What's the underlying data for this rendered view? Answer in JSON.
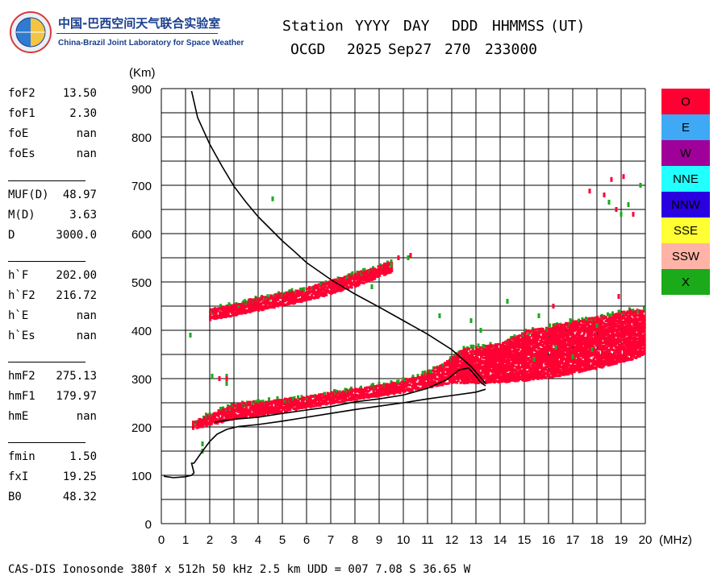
{
  "logo": {
    "cn_text": "中国-巴西空间天气联合实验室",
    "en_text": "China-Brazil Joint Laboratory for Space Weather"
  },
  "header": {
    "labels": [
      "Station",
      "YYYY",
      "DAY",
      "DDD",
      "HHMMSS",
      "(UT)"
    ],
    "values": [
      "OCGD",
      "2025",
      "Sep27",
      "270",
      "233000"
    ]
  },
  "parameters": [
    [
      {
        "name": "foF2",
        "value": "13.50"
      },
      {
        "name": "foF1",
        "value": "2.30"
      },
      {
        "name": "foE",
        "value": "nan"
      },
      {
        "name": "foEs",
        "value": "nan"
      }
    ],
    [
      {
        "name": "MUF(D)",
        "value": "48.97"
      },
      {
        "name": "M(D)",
        "value": "3.63"
      },
      {
        "name": "D",
        "value": "3000.0"
      }
    ],
    [
      {
        "name": "h`F",
        "value": "202.00"
      },
      {
        "name": "h`F2",
        "value": "216.72"
      },
      {
        "name": "h`E",
        "value": "nan"
      },
      {
        "name": "h`Es",
        "value": "nan"
      }
    ],
    [
      {
        "name": "hmF2",
        "value": "275.13"
      },
      {
        "name": "hmF1",
        "value": "179.97"
      },
      {
        "name": "hmE",
        "value": "nan"
      }
    ],
    [
      {
        "name": "fmin",
        "value": "1.50"
      },
      {
        "name": "fxI",
        "value": "19.25"
      },
      {
        "name": "B0",
        "value": "48.32"
      }
    ]
  ],
  "footer": "CAS-DIS Ionosonde 380f x 512h 50 kHz 2.5 km UDD = 007 7.08 S 36.65 W",
  "legend": [
    {
      "label": "O",
      "color": "#ff0033"
    },
    {
      "label": "E",
      "color": "#3fa9f5"
    },
    {
      "label": "W",
      "color": "#a0009a"
    },
    {
      "label": "NNE",
      "color": "#22ffff"
    },
    {
      "label": "NNW",
      "color": "#2a00e0"
    },
    {
      "label": "SSE",
      "color": "#ffff33"
    },
    {
      "label": "SSW",
      "color": "#ffb3a6"
    },
    {
      "label": "X",
      "color": "#1aaa1a"
    }
  ],
  "chart_data": {
    "type": "scatter",
    "xlabel": "(MHz)",
    "ylabel": "(Km)",
    "xlim": [
      0,
      20
    ],
    "ylim": [
      0,
      900
    ],
    "xticks": [
      0,
      1,
      2,
      3,
      4,
      5,
      6,
      7,
      8,
      9,
      10,
      11,
      12,
      13,
      14,
      15,
      16,
      17,
      18,
      19,
      20
    ],
    "yticks": [
      0,
      100,
      200,
      300,
      400,
      500,
      600,
      700,
      800,
      900
    ],
    "grid": true,
    "legend_position": "right",
    "traces": [
      {
        "name": "O",
        "color": "#ff0033",
        "bands": [
          {
            "lower": [
              [
                1.3,
                195
              ],
              [
                3,
                215
              ],
              [
                5,
                230
              ],
              [
                7,
                248
              ],
              [
                9,
                263
              ],
              [
                10.5,
                275
              ],
              [
                12,
                290
              ],
              [
                13.5,
                290
              ],
              [
                15,
                295
              ],
              [
                16.5,
                305
              ],
              [
                18,
                320
              ],
              [
                19.5,
                340
              ],
              [
                20,
                350
              ]
            ],
            "upper": [
              [
                1.3,
                210
              ],
              [
                3,
                245
              ],
              [
                5,
                255
              ],
              [
                7,
                268
              ],
              [
                9,
                285
              ],
              [
                10.5,
                300
              ],
              [
                11.5,
                325
              ],
              [
                12.5,
                360
              ],
              [
                14,
                370
              ],
              [
                15,
                395
              ],
              [
                16.5,
                410
              ],
              [
                18,
                425
              ],
              [
                19.5,
                440
              ],
              [
                20,
                440
              ]
            ]
          },
          {
            "lower": [
              [
                2.0,
                420
              ],
              [
                4,
                440
              ],
              [
                6,
                460
              ],
              [
                8,
                490
              ],
              [
                9.5,
                520
              ]
            ],
            "upper": [
              [
                2.0,
                440
              ],
              [
                4,
                465
              ],
              [
                6,
                485
              ],
              [
                8,
                515
              ],
              [
                9.5,
                540
              ]
            ]
          }
        ]
      },
      {
        "name": "X",
        "color": "#1aaa1a",
        "points": [
          [
            1.2,
            390
          ],
          [
            1.7,
            165
          ],
          [
            1.7,
            150
          ],
          [
            2.1,
            305
          ],
          [
            2.7,
            305
          ],
          [
            2.7,
            290
          ],
          [
            4.6,
            672
          ],
          [
            10.2,
            550
          ],
          [
            11.5,
            430
          ],
          [
            12.8,
            420
          ],
          [
            13.2,
            400
          ],
          [
            14.3,
            460
          ],
          [
            15.6,
            430
          ],
          [
            16.3,
            365
          ],
          [
            17.0,
            345
          ],
          [
            17.8,
            360
          ],
          [
            18.5,
            665
          ],
          [
            19.0,
            640
          ],
          [
            19.8,
            700
          ],
          [
            19.3,
            660
          ],
          [
            18.0,
            410
          ],
          [
            9.5,
            535
          ],
          [
            8.7,
            490
          ],
          [
            15.4,
            340
          ],
          [
            16.9,
            420
          ]
        ]
      },
      {
        "name": "O-isolated",
        "color": "#ff0033",
        "points": [
          [
            17.7,
            688
          ],
          [
            18.3,
            680
          ],
          [
            18.6,
            712
          ],
          [
            19.1,
            718
          ],
          [
            18.8,
            650
          ],
          [
            19.5,
            640
          ],
          [
            19.9,
            405
          ],
          [
            19.7,
            365
          ],
          [
            18.9,
            470
          ],
          [
            17.8,
            395
          ],
          [
            16.2,
            450
          ],
          [
            10.3,
            555
          ],
          [
            9.8,
            550
          ],
          [
            2.4,
            300
          ],
          [
            2.7,
            300
          ]
        ]
      }
    ],
    "curves": [
      {
        "name": "MUF curve",
        "color": "#000000",
        "points": [
          [
            1.25,
            895
          ],
          [
            1.5,
            840
          ],
          [
            2.0,
            785
          ],
          [
            2.5,
            740
          ],
          [
            3.0,
            698
          ],
          [
            3.5,
            665
          ],
          [
            4.0,
            635
          ],
          [
            4.5,
            610
          ],
          [
            5.0,
            585
          ],
          [
            5.5,
            563
          ],
          [
            6.0,
            540
          ],
          [
            7.0,
            505
          ],
          [
            8.0,
            475
          ],
          [
            9.0,
            448
          ],
          [
            10.0,
            420
          ],
          [
            11.0,
            392
          ],
          [
            12.0,
            360
          ],
          [
            12.8,
            325
          ],
          [
            13.4,
            290
          ]
        ]
      },
      {
        "name": "Trace profile",
        "color": "#000000",
        "points": [
          [
            0.1,
            98
          ],
          [
            0.5,
            95
          ],
          [
            1.0,
            97
          ],
          [
            1.25,
            100
          ],
          [
            1.35,
            105
          ],
          [
            1.25,
            125
          ],
          [
            1.35,
            125
          ],
          [
            1.7,
            150
          ],
          [
            2.0,
            170
          ],
          [
            2.3,
            185
          ],
          [
            2.7,
            195
          ],
          [
            3.2,
            201
          ],
          [
            4.0,
            205
          ],
          [
            5.0,
            212
          ],
          [
            6.0,
            220
          ],
          [
            7.0,
            228
          ],
          [
            8.0,
            236
          ],
          [
            9.0,
            243
          ],
          [
            10.0,
            250
          ],
          [
            11.0,
            258
          ],
          [
            12.0,
            265
          ],
          [
            13.0,
            272
          ],
          [
            13.4,
            278
          ]
        ]
      },
      {
        "name": "Inner profile",
        "color": "#000000",
        "points": [
          [
            2.2,
            210
          ],
          [
            3.0,
            216
          ],
          [
            4.0,
            220
          ],
          [
            5.0,
            228
          ],
          [
            6.0,
            235
          ],
          [
            7.0,
            242
          ],
          [
            8.0,
            252
          ],
          [
            9.0,
            258
          ],
          [
            10.0,
            266
          ],
          [
            11.0,
            280
          ],
          [
            11.8,
            298
          ],
          [
            12.3,
            318
          ],
          [
            12.7,
            322
          ],
          [
            13.0,
            305
          ],
          [
            13.2,
            292
          ],
          [
            13.4,
            285
          ]
        ]
      }
    ]
  }
}
